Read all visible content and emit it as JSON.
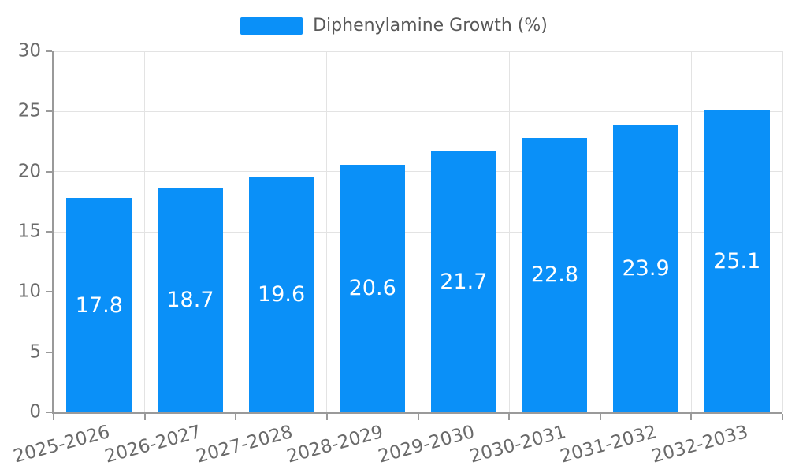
{
  "chart_data": {
    "type": "bar",
    "title": "",
    "legend": "Diphenylamine Growth (%)",
    "legend_position": "top-center",
    "categories": [
      "2025-2026",
      "2026-2027",
      "2027-2028",
      "2028-2029",
      "2029-2030",
      "2030-2031",
      "2031-2032",
      "2032-2033"
    ],
    "values": [
      17.8,
      18.7,
      19.6,
      20.6,
      21.7,
      22.8,
      23.9,
      25.1
    ],
    "xlabel": "",
    "ylabel": "",
    "ylim": [
      0,
      30
    ],
    "yticks": [
      0,
      5,
      10,
      15,
      20,
      25,
      30
    ],
    "grid": true,
    "colors": {
      "bar": "#0a90f8",
      "gridline": "#e3e3e3",
      "axis": "#9a9a9a",
      "tick_label": "#6a6a6a",
      "legend_text": "#595959",
      "value_label": "#ffffff",
      "background": "#ffffff"
    }
  }
}
